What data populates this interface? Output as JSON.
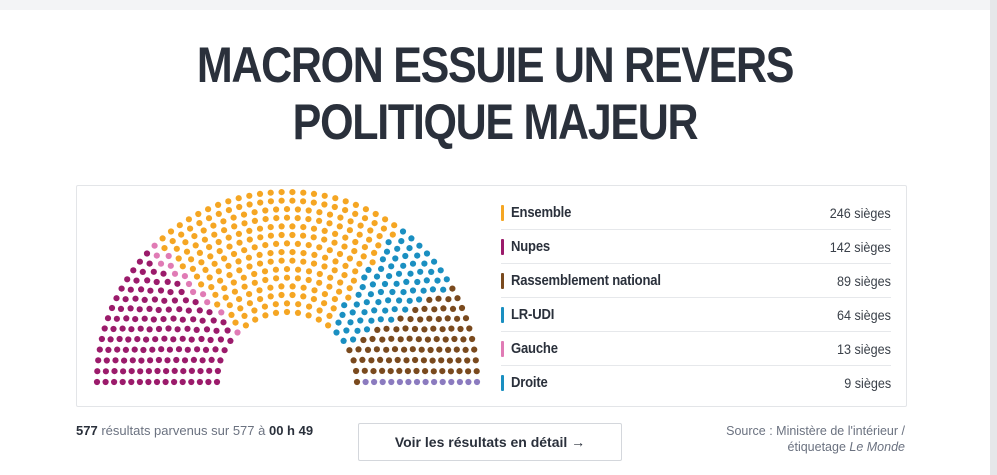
{
  "headline": {
    "line1": "MACRON ESSUIE UN REVERS",
    "line2": "POLITIQUE MAJEUR"
  },
  "chart_data": {
    "type": "parliament",
    "total_seats": 577,
    "parties": [
      {
        "name": "Ensemble",
        "seats": 246,
        "seats_label": "246 sièges",
        "color": "#f5a623"
      },
      {
        "name": "Nupes",
        "seats": 142,
        "seats_label": "142 sièges",
        "color": "#9b1b6b"
      },
      {
        "name": "Rassemblement national",
        "seats": 89,
        "seats_label": "89 sièges",
        "color": "#7a4a1e"
      },
      {
        "name": "LR-UDI",
        "seats": 64,
        "seats_label": "64 sièges",
        "color": "#1a8fc1"
      },
      {
        "name": "Gauche",
        "seats": 13,
        "seats_label": "13 sièges",
        "color": "#e07bb5"
      },
      {
        "name": "Droite",
        "seats": 9,
        "seats_label": "9 sièges",
        "color": "#1a8fc1"
      }
    ],
    "hemicycle_order": [
      "Nupes",
      "Gauche",
      "Ensemble",
      "Droite",
      "LR-UDI",
      "Rassemblement national"
    ],
    "unlabeled_seats": {
      "seats": 14,
      "color": "#8b7bbf"
    }
  },
  "footer": {
    "count": "577",
    "results_text": " résultats parvenus sur 577 à ",
    "time": "00 h 49",
    "button_label": "Voir les résultats en détail →",
    "source_line1": "Source : Ministère de l'intérieur /",
    "source_line2_prefix": "étiquetage ",
    "source_line2_italic": "Le Monde"
  }
}
